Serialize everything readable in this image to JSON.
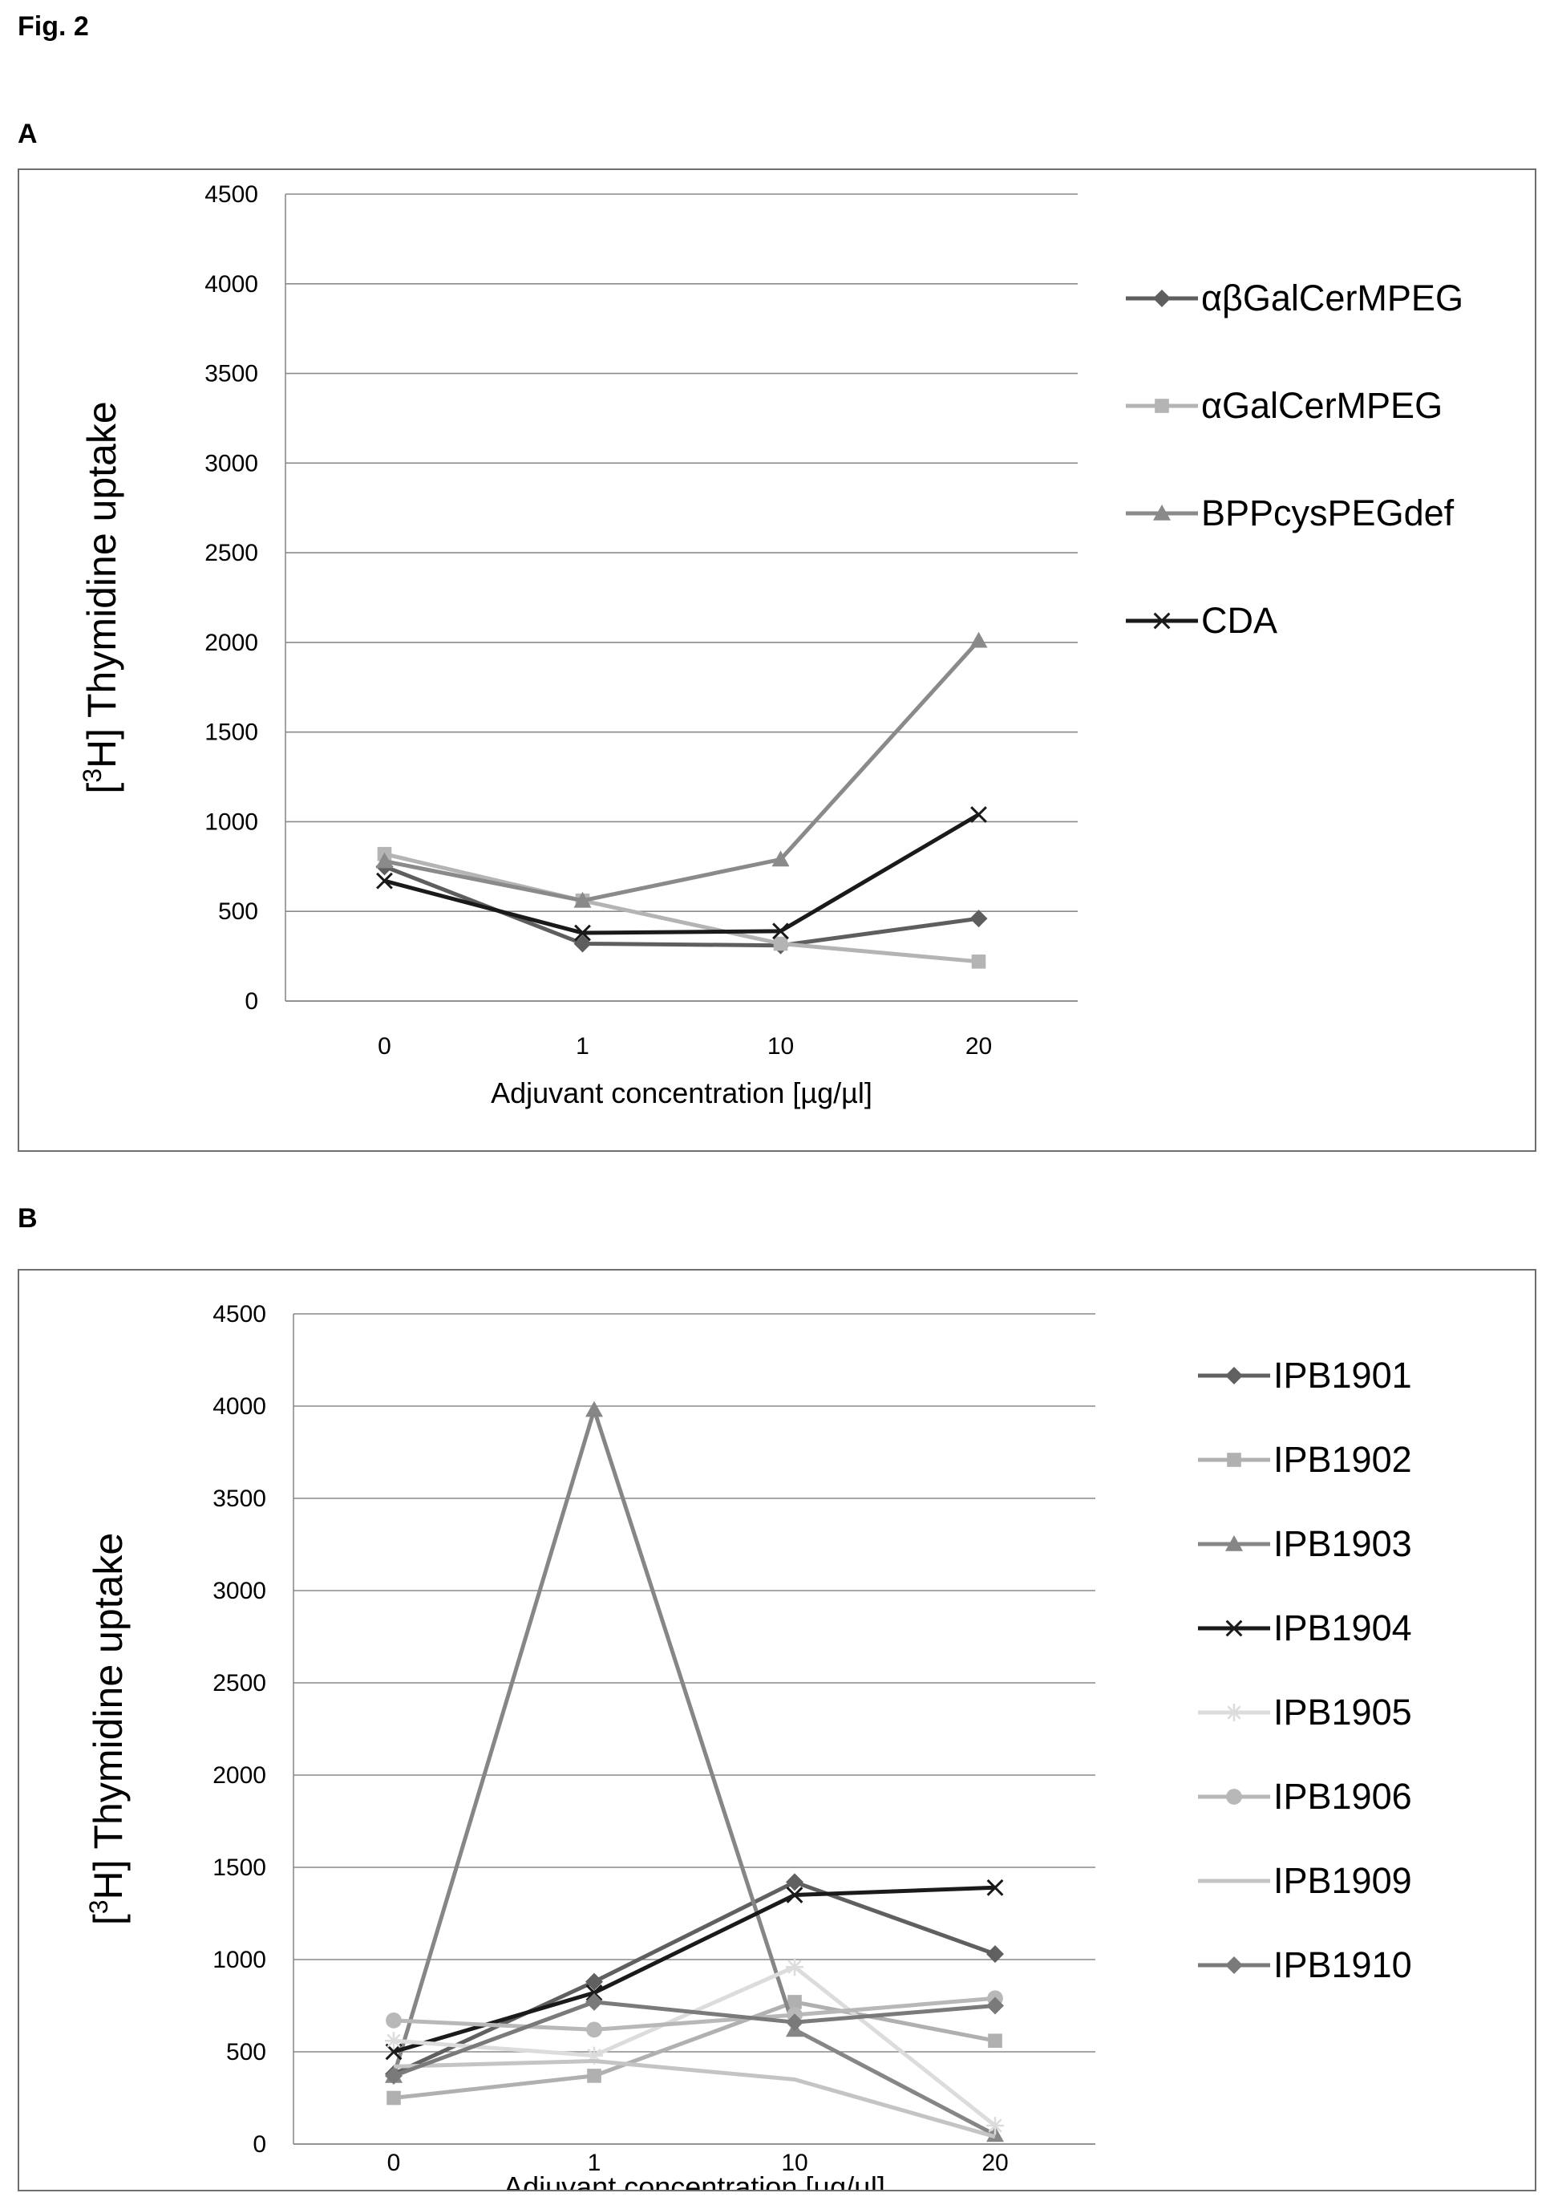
{
  "figure_title": "Fig. 2",
  "chart_data": [
    {
      "panel": "A",
      "type": "line",
      "categories": [
        "0",
        "1",
        "10",
        "20"
      ],
      "xlabel": "Adjuvant concentration [µg/µl]",
      "ylabel_parts": [
        "[",
        "3",
        "H] Thymidine uptake"
      ],
      "ylim": [
        0,
        4500
      ],
      "yticks": [
        0,
        500,
        1000,
        1500,
        2000,
        2500,
        3000,
        3500,
        4000,
        4500
      ],
      "grid": true,
      "legend_position": "right",
      "series": [
        {
          "name": "αβGalCerMPEG",
          "values": [
            750,
            320,
            310,
            460
          ],
          "color": "#5e5e5e",
          "marker": "diamond"
        },
        {
          "name": "αGalCerMPEG",
          "values": [
            820,
            560,
            320,
            220
          ],
          "color": "#b4b4b4",
          "marker": "square"
        },
        {
          "name": "BPPcysPEGdef",
          "values": [
            780,
            560,
            790,
            2010
          ],
          "color": "#8a8a8a",
          "marker": "triangle"
        },
        {
          "name": "CDA",
          "values": [
            670,
            380,
            390,
            1040
          ],
          "color": "#1a1a1a",
          "marker": "x"
        }
      ]
    },
    {
      "panel": "B",
      "type": "line",
      "categories": [
        "0",
        "1",
        "10",
        "20"
      ],
      "xlabel": "Adjuvant concentration [µg/µl]",
      "ylabel_parts": [
        "[",
        "3",
        "H] Thymidine uptake"
      ],
      "ylim": [
        0,
        4500
      ],
      "yticks": [
        0,
        500,
        1000,
        1500,
        2000,
        2500,
        3000,
        3500,
        4000,
        4500
      ],
      "grid": true,
      "legend_position": "right",
      "series": [
        {
          "name": "IPB1901",
          "values": [
            380,
            880,
            1420,
            1030
          ],
          "color": "#606060",
          "marker": "diamond"
        },
        {
          "name": "IPB1902",
          "values": [
            250,
            370,
            770,
            560
          ],
          "color": "#b0b0b0",
          "marker": "square"
        },
        {
          "name": "IPB1903",
          "values": [
            370,
            3980,
            620,
            50
          ],
          "color": "#868686",
          "marker": "triangle"
        },
        {
          "name": "IPB1904",
          "values": [
            500,
            820,
            1350,
            1390
          ],
          "color": "#1a1a1a",
          "marker": "x"
        },
        {
          "name": "IPB1905",
          "values": [
            560,
            480,
            960,
            100
          ],
          "color": "#dcdcdc",
          "marker": "star"
        },
        {
          "name": "IPB1906",
          "values": [
            670,
            620,
            700,
            790
          ],
          "color": "#b8b8b8",
          "marker": "circle"
        },
        {
          "name": "IPB1909",
          "values": [
            420,
            450,
            350,
            40
          ],
          "color": "#c4c4c4",
          "marker": "none"
        },
        {
          "name": "IPB1910",
          "values": [
            370,
            770,
            660,
            750
          ],
          "color": "#7a7a7a",
          "marker": "diamond"
        }
      ]
    }
  ]
}
